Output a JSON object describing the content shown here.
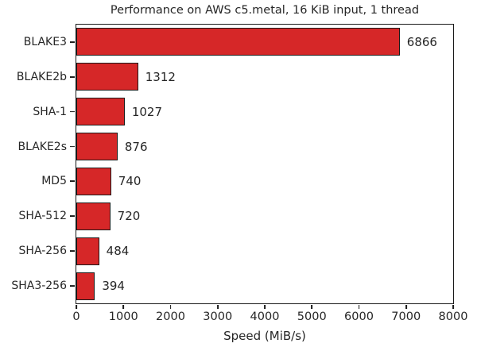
{
  "chart_data": {
    "type": "bar",
    "orientation": "horizontal",
    "title": "Performance on AWS c5.metal, 16 KiB input, 1 thread",
    "xlabel": "Speed (MiB/s)",
    "ylabel": "",
    "categories": [
      "BLAKE3",
      "BLAKE2b",
      "SHA-1",
      "BLAKE2s",
      "MD5",
      "SHA-512",
      "SHA-256",
      "SHA3-256"
    ],
    "values": [
      6866,
      1312,
      1027,
      876,
      740,
      720,
      484,
      394
    ],
    "value_labels": [
      "6866",
      "1312",
      "1027",
      "876",
      "740",
      "720",
      "484",
      "394"
    ],
    "xlim": [
      0,
      8000
    ],
    "xticks": [
      0,
      1000,
      2000,
      3000,
      4000,
      5000,
      6000,
      7000,
      8000
    ],
    "xtick_labels": [
      "0",
      "1000",
      "2000",
      "3000",
      "4000",
      "5000",
      "6000",
      "7000",
      "8000"
    ],
    "grid": false,
    "legend_position": "none",
    "bar_color": "#d62728",
    "bar_edge_color": "#1a1a1a",
    "text_color": "#262626",
    "background_color": "#ffffff"
  }
}
